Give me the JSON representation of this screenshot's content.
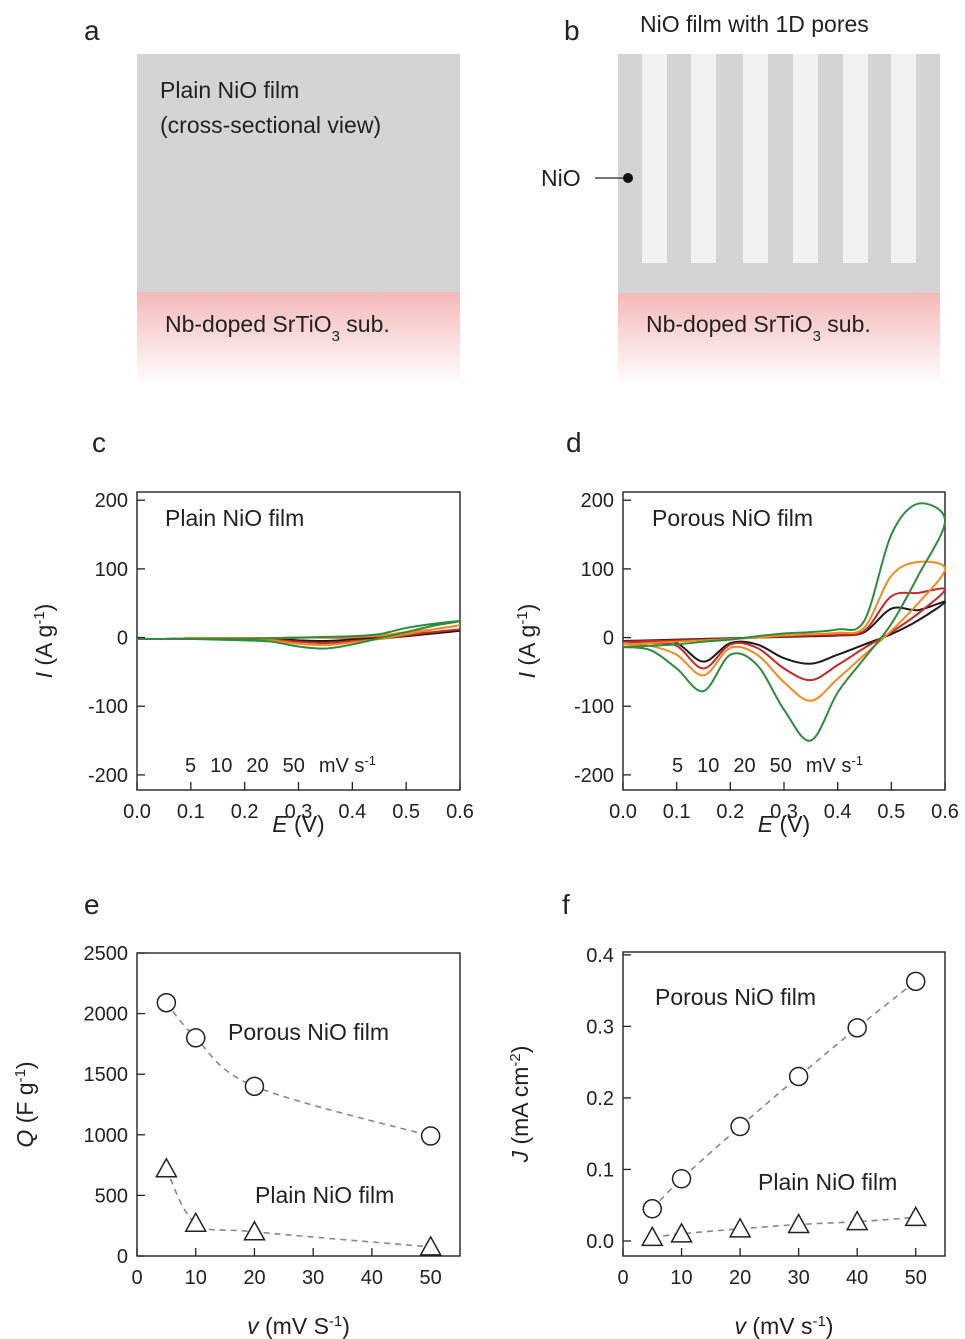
{
  "diagrams": {
    "a": {
      "letter": "a",
      "title_lines": [
        "Plain NiO film",
        "(cross-sectional view)"
      ],
      "substrate": [
        {
          "text": "Nb-doped SrTiO"
        },
        {
          "text": "3",
          "style": "sub"
        },
        {
          "text": " sub."
        }
      ]
    },
    "b": {
      "letter": "b",
      "title": "NiO film with 1D pores",
      "pointer_label": "NiO",
      "substrate": [
        {
          "text": "Nb-doped SrTiO"
        },
        {
          "text": "3",
          "style": "sub"
        },
        {
          "text": " sub."
        }
      ]
    }
  },
  "chart_data": [
    {
      "type": "line",
      "letter": "c",
      "title": "Plain NiO film",
      "x_label": [
        {
          "text": "E",
          "style": "italic"
        },
        {
          "text": " (V)"
        }
      ],
      "y_label": [
        {
          "text": "I",
          "style": "italic"
        },
        {
          "text": " (A g"
        },
        {
          "text": "-1",
          "style": "sup"
        },
        {
          "text": ")"
        }
      ],
      "xlim": [
        0,
        0.6
      ],
      "xticks": [
        {
          "value": 0,
          "label": "0.0"
        },
        0.1,
        0.2,
        0.3,
        0.4,
        0.5,
        0.6
      ],
      "ylim": [
        -222,
        212
      ],
      "yticks": [
        -200,
        -100,
        0,
        100,
        200
      ],
      "legend_unit": [
        {
          "text": "mV s"
        },
        {
          "text": "-1",
          "style": "sup"
        }
      ],
      "series": [
        {
          "name": "5",
          "color": "#1a1a1a",
          "x": [
            0,
            0.05,
            0.1,
            0.15,
            0.2,
            0.25,
            0.3,
            0.35,
            0.4,
            0.45,
            0.5,
            0.55,
            0.6,
            0.55,
            0.5,
            0.45,
            0.4,
            0.35,
            0.3,
            0.25,
            0.2,
            0.15,
            0.1,
            0.05,
            0
          ],
          "values": [
            -2,
            -2,
            -2,
            -1,
            -1,
            -1,
            0,
            0,
            0,
            1,
            3,
            6,
            10,
            6,
            2,
            -1,
            -3,
            -5,
            -4,
            -2,
            -1,
            -1,
            -1,
            -2,
            -2
          ]
        },
        {
          "name": "10",
          "color": "#c62828",
          "x": [
            0,
            0.05,
            0.1,
            0.15,
            0.2,
            0.25,
            0.3,
            0.35,
            0.4,
            0.45,
            0.5,
            0.55,
            0.6,
            0.55,
            0.5,
            0.45,
            0.4,
            0.35,
            0.3,
            0.25,
            0.2,
            0.15,
            0.1,
            0.05,
            0
          ],
          "values": [
            -2,
            -2,
            -2,
            -1,
            -1,
            -1,
            0,
            0,
            0,
            2,
            5,
            8,
            12,
            8,
            3,
            -2,
            -5,
            -8,
            -6,
            -3,
            -2,
            -1,
            -1,
            -2,
            -2
          ]
        },
        {
          "name": "20",
          "color": "#f28a1e",
          "x": [
            0,
            0.05,
            0.1,
            0.15,
            0.2,
            0.25,
            0.3,
            0.35,
            0.4,
            0.45,
            0.5,
            0.55,
            0.6,
            0.55,
            0.5,
            0.45,
            0.4,
            0.35,
            0.3,
            0.25,
            0.2,
            0.15,
            0.1,
            0.05,
            0
          ],
          "values": [
            -2,
            -2,
            -2,
            -1,
            -1,
            -1,
            0,
            0,
            1,
            3,
            8,
            12,
            18,
            12,
            5,
            -2,
            -7,
            -11,
            -9,
            -4,
            -2,
            -1,
            -1,
            -2,
            -2
          ]
        },
        {
          "name": "50",
          "color": "#2e8b3e",
          "x": [
            0,
            0.05,
            0.1,
            0.15,
            0.2,
            0.25,
            0.3,
            0.35,
            0.4,
            0.45,
            0.5,
            0.55,
            0.6,
            0.55,
            0.5,
            0.45,
            0.4,
            0.35,
            0.3,
            0.25,
            0.2,
            0.15,
            0.1,
            0.05,
            0
          ],
          "values": [
            -2,
            -2,
            -2,
            -2,
            -2,
            -1,
            0,
            1,
            2,
            5,
            14,
            20,
            24,
            17,
            8,
            -1,
            -10,
            -16,
            -13,
            -6,
            -4,
            -3,
            -2,
            -2,
            -2
          ]
        }
      ]
    },
    {
      "type": "line",
      "letter": "d",
      "title": "Porous NiO film",
      "x_label": [
        {
          "text": "E",
          "style": "italic"
        },
        {
          "text": " (V)"
        }
      ],
      "y_label": [
        {
          "text": "I",
          "style": "italic"
        },
        {
          "text": " (A g"
        },
        {
          "text": "-1",
          "style": "sup"
        },
        {
          "text": ")"
        }
      ],
      "xlim": [
        0,
        0.6
      ],
      "xticks": [
        {
          "value": 0,
          "label": "0.0"
        },
        0.1,
        0.2,
        0.3,
        0.4,
        0.5,
        0.6
      ],
      "ylim": [
        -222,
        212
      ],
      "yticks": [
        -200,
        -100,
        0,
        100,
        200
      ],
      "legend_unit": [
        {
          "text": "mV s"
        },
        {
          "text": "-1",
          "style": "sup"
        }
      ],
      "series": [
        {
          "name": "5",
          "color": "#1a1a1a",
          "x": [
            0,
            0.05,
            0.1,
            0.15,
            0.2,
            0.25,
            0.3,
            0.35,
            0.4,
            0.45,
            0.5,
            0.55,
            0.6,
            0.55,
            0.5,
            0.45,
            0.4,
            0.35,
            0.3,
            0.25,
            0.2,
            0.15,
            0.1,
            0.05,
            0
          ],
          "values": [
            -5,
            -4,
            -3,
            -2,
            -1,
            0,
            1,
            2,
            3,
            8,
            42,
            40,
            52,
            25,
            5,
            -10,
            -25,
            -38,
            -30,
            -10,
            -8,
            -35,
            -8,
            -6,
            -5
          ]
        },
        {
          "name": "10",
          "color": "#c62828",
          "x": [
            0,
            0.05,
            0.1,
            0.15,
            0.2,
            0.25,
            0.3,
            0.35,
            0.4,
            0.45,
            0.5,
            0.55,
            0.6,
            0.55,
            0.5,
            0.45,
            0.4,
            0.35,
            0.3,
            0.25,
            0.2,
            0.15,
            0.1,
            0.05,
            0
          ],
          "values": [
            -6,
            -5,
            -4,
            -3,
            -2,
            0,
            2,
            3,
            4,
            10,
            60,
            65,
            70,
            35,
            8,
            -15,
            -40,
            -62,
            -45,
            -15,
            -10,
            -45,
            -12,
            -8,
            -6
          ]
        },
        {
          "name": "20",
          "color": "#f28a1e",
          "x": [
            0,
            0.05,
            0.1,
            0.15,
            0.2,
            0.25,
            0.3,
            0.35,
            0.4,
            0.45,
            0.5,
            0.55,
            0.6,
            0.55,
            0.5,
            0.45,
            0.4,
            0.35,
            0.3,
            0.25,
            0.2,
            0.15,
            0.1,
            0.05,
            0
          ],
          "values": [
            -10,
            -8,
            -6,
            -4,
            -2,
            0,
            3,
            5,
            7,
            15,
            90,
            110,
            100,
            50,
            10,
            -25,
            -60,
            -92,
            -65,
            -25,
            -15,
            -55,
            -25,
            -12,
            -10
          ]
        },
        {
          "name": "50",
          "color": "#2e8b3e",
          "x": [
            0,
            0.05,
            0.1,
            0.15,
            0.2,
            0.25,
            0.3,
            0.35,
            0.4,
            0.45,
            0.5,
            0.55,
            0.6,
            0.55,
            0.5,
            0.45,
            0.4,
            0.35,
            0.3,
            0.25,
            0.2,
            0.15,
            0.1,
            0.05,
            0
          ],
          "values": [
            -14,
            -12,
            -10,
            -6,
            -3,
            2,
            6,
            8,
            12,
            25,
            150,
            195,
            170,
            90,
            20,
            -30,
            -80,
            -150,
            -105,
            -40,
            -25,
            -78,
            -45,
            -18,
            -14
          ]
        }
      ]
    },
    {
      "type": "scatter",
      "letter": "e",
      "x_label": [
        {
          "text": "v",
          "style": "italic"
        },
        {
          "text": " (mV S"
        },
        {
          "text": "-1",
          "style": "sup"
        },
        {
          "text": ")"
        }
      ],
      "y_label": [
        {
          "text": "Q",
          "style": "italic"
        },
        {
          "text": " (F g"
        },
        {
          "text": "-1",
          "style": "sup"
        },
        {
          "text": ")"
        }
      ],
      "xlim": [
        0,
        55
      ],
      "xticks": [
        0,
        10,
        20,
        30,
        40,
        50
      ],
      "ylim": [
        0,
        2500
      ],
      "yticks": [
        0,
        500,
        1000,
        1500,
        2000,
        2500
      ],
      "series": [
        {
          "name": "Porous NiO film",
          "marker": "circle",
          "color": "#222",
          "fit_line": true,
          "x": [
            5,
            10,
            20,
            50
          ],
          "values": [
            2090,
            1800,
            1400,
            990
          ]
        },
        {
          "name": "Plain NiO film",
          "marker": "triangle",
          "color": "#222",
          "fit_line": true,
          "x": [
            5,
            10,
            20,
            50
          ],
          "values": [
            720,
            270,
            200,
            75
          ]
        }
      ]
    },
    {
      "type": "scatter",
      "letter": "f",
      "x_label": [
        {
          "text": "v",
          "style": "italic"
        },
        {
          "text": " (mV s"
        },
        {
          "text": "-1",
          "style": "sup"
        },
        {
          "text": ")"
        }
      ],
      "y_label": [
        {
          "text": "J",
          "style": "italic"
        },
        {
          "text": " (mA cm"
        },
        {
          "text": "-2",
          "style": "sup"
        },
        {
          "text": ")"
        }
      ],
      "xlim": [
        0,
        55
      ],
      "xticks": [
        0,
        10,
        20,
        30,
        40,
        50
      ],
      "ylim": [
        -0.021,
        0.404
      ],
      "yticks": [
        {
          "value": 0,
          "label": "0.0"
        },
        0.1,
        0.2,
        0.3,
        0.4
      ],
      "series": [
        {
          "name": "Porous NiO film",
          "marker": "circle",
          "color": "#222",
          "fit_line": true,
          "x": [
            5,
            10,
            20,
            30,
            40,
            50
          ],
          "values": [
            0.045,
            0.087,
            0.16,
            0.23,
            0.298,
            0.363
          ]
        },
        {
          "name": "Plain NiO film",
          "marker": "triangle",
          "color": "#222",
          "fit_line": true,
          "x": [
            5,
            10,
            20,
            30,
            40,
            50
          ],
          "values": [
            0.005,
            0.01,
            0.017,
            0.023,
            0.027,
            0.033
          ]
        }
      ]
    }
  ]
}
